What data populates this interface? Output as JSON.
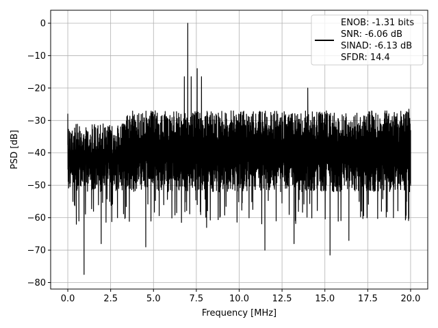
{
  "chart_data": {
    "type": "line",
    "xlabel": "Frequency [MHz]",
    "ylabel": "PSD [dB]",
    "xlim": [
      -1.0,
      21.0
    ],
    "ylim": [
      -82,
      4
    ],
    "x_ticks": [
      0.0,
      2.5,
      5.0,
      7.5,
      10.0,
      12.5,
      15.0,
      17.5,
      20.0
    ],
    "x_tick_labels": [
      "0.0",
      "2.5",
      "5.0",
      "7.5",
      "10.0",
      "12.5",
      "15.0",
      "17.5",
      "20.0"
    ],
    "y_ticks": [
      0,
      -10,
      -20,
      -30,
      -40,
      -50,
      -60,
      -70,
      -80
    ],
    "y_tick_labels": [
      "0",
      "−10",
      "−20",
      "−30",
      "−40",
      "−50",
      "−60",
      "−70",
      "−80"
    ],
    "grid": true,
    "legend_position": "top-right",
    "line_color": "#000000",
    "legend_lines": [
      "ENOB: -1.31 bits",
      "SNR: -6.06 dB",
      "SINAD: -6.13 dB",
      "SFDR: 14.4"
    ],
    "noise_floor": {
      "x_range": [
        0.0,
        20.0
      ],
      "typical_top_db": -30,
      "typical_bottom_db": -50,
      "top_rise_after_mhz": 3.3,
      "top_after_rise_db": -27
    },
    "series": [
      {
        "x": [
          0.0,
          0.3,
          0.5,
          0.65,
          0.95,
          1.5,
          1.95,
          2.45,
          2.9,
          3.35,
          4.55,
          5.6,
          6.8,
          7.0,
          7.2,
          7.55,
          7.8,
          8.1,
          11.5,
          13.2,
          14.0,
          15.3,
          16.4,
          17.0,
          18.3,
          19.0,
          19.9,
          20.0
        ],
        "y": [
          -28,
          -55,
          -62,
          -61,
          -77.5,
          -58,
          -68,
          -55,
          -60,
          -60,
          -69,
          -56,
          -16.5,
          0.0,
          -16.5,
          -14.0,
          -16.5,
          -63,
          -70,
          -68,
          -20,
          -71.5,
          -67,
          -55,
          -58,
          -60,
          -26.5,
          -33
        ]
      }
    ]
  }
}
